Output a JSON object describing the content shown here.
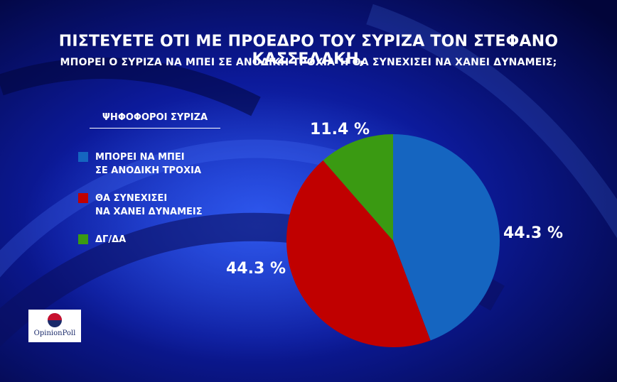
{
  "header": {
    "line1": "ΠΙΣΤΕΥΕΤΕ ΟΤΙ ΜΕ ΠΡΟΕΔΡΟ ΤΟΥ ΣΥΡΙΖΑ ΤΟΝ ΣΤΕΦΑΝΟ ΚΑΣΣΕΛΑΚΗ,",
    "line2": "ΜΠΟΡΕΙ Ο ΣΥΡΙΖΑ ΝΑ ΜΠΕΙ ΣΕ ΑΝΟΔΙΚΗ ΤΡΟΧΙΑ Ή ΘΑ ΣΥΝΕΧΙΣΕΙ ΝΑ ΧΑΝΕΙ ΔΥΝΑΜΕΙΣ;"
  },
  "legend": {
    "heading": "ΨΗΦΟΦΟΡΟΙ ΣΥΡΙΖΑ",
    "items": [
      {
        "line1": "ΜΠΟΡΕΙ ΝΑ ΜΠΕΙ",
        "line2": "ΣΕ ΑΝΟΔΙΚΗ ΤΡΟΧΙΑ",
        "color": "#1565c0"
      },
      {
        "line1": "ΘΑ ΣΥΝΕΧΙΣΕΙ",
        "line2": "ΝΑ ΧΑΝΕΙ ΔΥΝΑΜΕΙΣ",
        "color": "#c00000"
      },
      {
        "line1": "ΔΓ/ΔΑ",
        "line2": "",
        "color": "#3a9a12"
      }
    ]
  },
  "chart_data": {
    "type": "pie",
    "categories": [
      "ΜΠΟΡΕΙ ΝΑ ΜΠΕΙ ΣΕ ΑΝΟΔΙΚΗ ΤΡΟΧΙΑ",
      "ΘΑ ΣΥΝΕΧΙΣΕΙ ΝΑ ΧΑΝΕΙ ΔΥΝΑΜΕΙΣ",
      "ΔΓ/ΔΑ"
    ],
    "values": [
      44.3,
      44.3,
      11.4
    ],
    "labels": [
      "44.3 %",
      "44.3 %",
      "11.4 %"
    ],
    "colors": [
      "#1565c0",
      "#c00000",
      "#3a9a12"
    ],
    "legend_position": "left"
  },
  "logo": {
    "text": "OpinionPoll"
  }
}
